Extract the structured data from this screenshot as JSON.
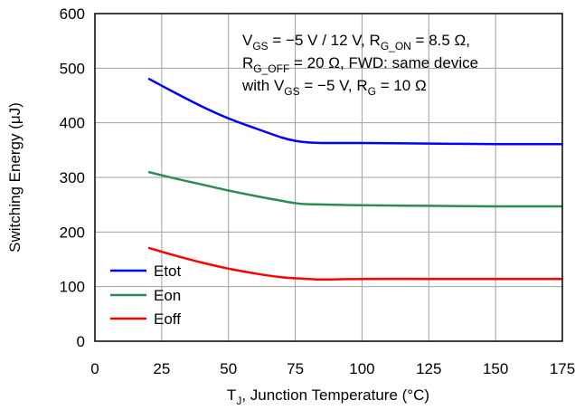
{
  "chart_data": {
    "type": "line",
    "xlabel": "T",
    "xlabel_sub": "J",
    "xlabel_rest": ", Junction Temperature (°C)",
    "ylabel": "Switching Energy (μJ)",
    "xlim": [
      0,
      175
    ],
    "ylim": [
      0,
      600
    ],
    "xticks": [
      "0",
      "25",
      "50",
      "75",
      "100",
      "125",
      "150",
      "175"
    ],
    "yticks": [
      "0",
      "100",
      "200",
      "300",
      "400",
      "500",
      "600"
    ],
    "grid": true,
    "legend_position": "bottom-left",
    "annotation": {
      "line1": {
        "a": "V",
        "a_sub": "GS",
        "b": " = −5 V / 12 V, R",
        "b_sub": "G_ON",
        "c": " = 8.5 Ω,"
      },
      "line2": {
        "a": "R",
        "a_sub": "G_OFF",
        "b": " = 20 Ω, FWD: same device"
      },
      "line3": {
        "a": "with V",
        "a_sub": "GS",
        "b": " = −5 V, R",
        "b_sub": "G",
        "c": " = 10 Ω"
      }
    },
    "series": [
      {
        "name": "Etot",
        "color": "#0000ff",
        "x": [
          20,
          30,
          40,
          50,
          60,
          70,
          75,
          80,
          85,
          100,
          125,
          150,
          175
        ],
        "y": [
          481,
          455,
          430,
          408,
          390,
          373,
          367,
          364,
          363,
          363,
          362,
          361,
          361
        ]
      },
      {
        "name": "Eon",
        "color": "#2e8b57",
        "x": [
          20,
          30,
          40,
          50,
          60,
          70,
          75,
          80,
          100,
          125,
          150,
          175
        ],
        "y": [
          310,
          298,
          287,
          276,
          266,
          257,
          253,
          251,
          249,
          248,
          247,
          247
        ]
      },
      {
        "name": "Eoff",
        "color": "#ff0000",
        "x": [
          20,
          30,
          40,
          50,
          60,
          70,
          80,
          85,
          100,
          125,
          150,
          175
        ],
        "y": [
          171,
          157,
          144,
          133,
          124,
          117,
          114,
          113,
          114,
          114,
          114,
          114
        ]
      }
    ]
  }
}
